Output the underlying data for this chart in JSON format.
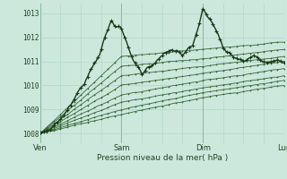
{
  "xlabel": "Pression niveau de la mer( hPa )",
  "background_color": "#cce8dd",
  "grid_color": "#aad4c4",
  "line_color_thin": "#336633",
  "line_color_bold": "#1a3a1a",
  "xlim": [
    0,
    72
  ],
  "ylim": [
    1007.6,
    1013.4
  ],
  "yticks": [
    1008,
    1009,
    1010,
    1011,
    1012,
    1013
  ],
  "xtick_positions": [
    0,
    24,
    48,
    72
  ],
  "xtick_labels": [
    "Ven",
    "Sam",
    "Dim",
    "Lun"
  ]
}
